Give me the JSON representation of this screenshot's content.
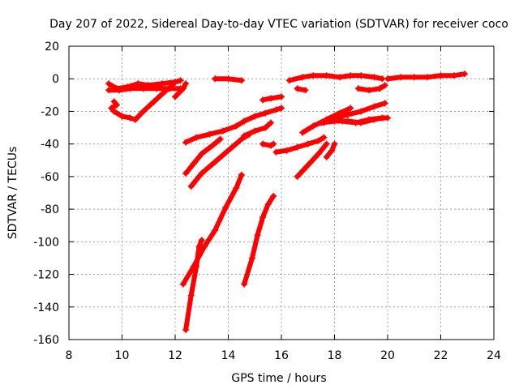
{
  "chart_data": {
    "type": "scatter",
    "title": "Day 207 of 2022, Sidereal Day-to-day VTEC variation (SDTVAR) for receiver coco",
    "xlabel": "GPS time / hours",
    "ylabel": "SDTVAR / TECUs",
    "xlim": [
      8,
      24
    ],
    "ylim": [
      -160,
      20
    ],
    "xticks": [
      8,
      10,
      12,
      14,
      16,
      18,
      20,
      22,
      24
    ],
    "yticks": [
      20,
      0,
      -20,
      -40,
      -60,
      -80,
      -100,
      -120,
      -140,
      -160
    ],
    "grid": true,
    "marker": "plus",
    "color": "#ff0000",
    "series": [
      {
        "points": [
          [
            9.5,
            -3
          ],
          [
            9.8,
            -6
          ],
          [
            10.2,
            -5
          ],
          [
            10.6,
            -3
          ],
          [
            11.0,
            -4
          ],
          [
            11.5,
            -3
          ],
          [
            12.0,
            -2
          ],
          [
            12.2,
            -1
          ]
        ]
      },
      {
        "points": [
          [
            9.5,
            -7
          ],
          [
            9.9,
            -7
          ],
          [
            10.3,
            -6
          ],
          [
            10.8,
            -6
          ],
          [
            11.3,
            -6
          ],
          [
            11.8,
            -6
          ],
          [
            12.2,
            -6
          ]
        ]
      },
      {
        "points": [
          [
            9.7,
            -14
          ],
          [
            9.8,
            -16
          ],
          [
            9.6,
            -18
          ],
          [
            9.7,
            -20
          ],
          [
            10.0,
            -23
          ],
          [
            10.3,
            -24
          ],
          [
            10.5,
            -25
          ]
        ]
      },
      {
        "points": [
          [
            10.5,
            -25
          ],
          [
            10.8,
            -20
          ],
          [
            11.2,
            -14
          ],
          [
            11.6,
            -8
          ],
          [
            11.9,
            -4
          ]
        ]
      },
      {
        "points": [
          [
            12.0,
            -11
          ],
          [
            12.3,
            -6
          ],
          [
            12.4,
            -3
          ]
        ]
      },
      {
        "points": [
          [
            13.5,
            0
          ],
          [
            14.0,
            0
          ],
          [
            14.5,
            -1
          ]
        ]
      },
      {
        "points": [
          [
            12.4,
            -39
          ],
          [
            12.8,
            -36
          ],
          [
            13.3,
            -34
          ],
          [
            13.8,
            -32
          ],
          [
            14.3,
            -29
          ],
          [
            14.6,
            -26
          ]
        ]
      },
      {
        "points": [
          [
            12.4,
            -58
          ],
          [
            12.7,
            -52
          ],
          [
            13.0,
            -46
          ],
          [
            13.4,
            -41
          ],
          [
            13.7,
            -37
          ]
        ]
      },
      {
        "points": [
          [
            12.6,
            -66
          ],
          [
            13.0,
            -58
          ],
          [
            13.5,
            -51
          ],
          [
            14.0,
            -44
          ],
          [
            14.5,
            -37
          ],
          [
            14.8,
            -34
          ]
        ]
      },
      {
        "points": [
          [
            14.6,
            -35
          ],
          [
            15.0,
            -32
          ],
          [
            15.4,
            -30
          ],
          [
            15.6,
            -27
          ]
        ]
      },
      {
        "points": [
          [
            14.6,
            -26
          ],
          [
            15.0,
            -23
          ],
          [
            15.4,
            -21
          ],
          [
            15.8,
            -19
          ],
          [
            16.0,
            -18
          ]
        ]
      },
      {
        "points": [
          [
            15.3,
            -13
          ],
          [
            15.6,
            -12
          ],
          [
            16.0,
            -11
          ]
        ]
      },
      {
        "points": [
          [
            15.3,
            -40
          ],
          [
            15.6,
            -41
          ],
          [
            15.7,
            -40
          ]
        ]
      },
      {
        "points": [
          [
            12.3,
            -126
          ],
          [
            12.7,
            -115
          ],
          [
            13.1,
            -103
          ],
          [
            13.5,
            -93
          ],
          [
            13.9,
            -79
          ],
          [
            14.3,
            -67
          ],
          [
            14.5,
            -59
          ]
        ]
      },
      {
        "points": [
          [
            12.4,
            -154
          ],
          [
            12.6,
            -133
          ],
          [
            12.8,
            -115
          ],
          [
            12.9,
            -103
          ],
          [
            13.0,
            -99
          ]
        ]
      },
      {
        "points": [
          [
            14.6,
            -126
          ],
          [
            14.9,
            -110
          ],
          [
            15.1,
            -96
          ],
          [
            15.3,
            -85
          ],
          [
            15.5,
            -77
          ],
          [
            15.7,
            -72
          ]
        ]
      },
      {
        "points": [
          [
            15.8,
            -45
          ],
          [
            16.2,
            -44
          ],
          [
            16.6,
            -42
          ],
          [
            17.0,
            -40
          ],
          [
            17.4,
            -38
          ],
          [
            17.6,
            -36
          ]
        ]
      },
      {
        "points": [
          [
            16.3,
            -1
          ],
          [
            16.8,
            1
          ],
          [
            17.2,
            2
          ],
          [
            17.7,
            2
          ],
          [
            18.2,
            1
          ],
          [
            18.6,
            2
          ],
          [
            19.0,
            2
          ],
          [
            19.5,
            1
          ],
          [
            19.8,
            0
          ]
        ]
      },
      {
        "points": [
          [
            16.6,
            -6
          ],
          [
            16.9,
            -7
          ]
        ]
      },
      {
        "points": [
          [
            16.6,
            -60
          ],
          [
            17.0,
            -53
          ],
          [
            17.4,
            -46
          ],
          [
            17.7,
            -40
          ]
        ]
      },
      {
        "points": [
          [
            17.7,
            -48
          ],
          [
            17.9,
            -44
          ],
          [
            18.0,
            -40
          ]
        ]
      },
      {
        "points": [
          [
            16.8,
            -33
          ],
          [
            17.2,
            -29
          ],
          [
            17.7,
            -25
          ],
          [
            18.2,
            -21
          ],
          [
            18.6,
            -18
          ]
        ]
      },
      {
        "points": [
          [
            17.5,
            -27
          ],
          [
            18.0,
            -26
          ],
          [
            18.5,
            -26
          ],
          [
            19.0,
            -27
          ],
          [
            19.5,
            -25
          ],
          [
            19.8,
            -24
          ]
        ]
      },
      {
        "points": [
          [
            17.6,
            -27
          ],
          [
            18.0,
            -24
          ],
          [
            18.5,
            -22
          ],
          [
            19.0,
            -20
          ],
          [
            19.5,
            -17
          ],
          [
            19.9,
            -15
          ]
        ]
      },
      {
        "points": [
          [
            18.3,
            -26
          ],
          [
            18.8,
            -27
          ],
          [
            19.3,
            -25
          ],
          [
            19.8,
            -24
          ],
          [
            20.0,
            -24
          ]
        ]
      },
      {
        "points": [
          [
            18.9,
            -6
          ],
          [
            19.3,
            -7
          ],
          [
            19.7,
            -6
          ],
          [
            19.9,
            -4
          ]
        ]
      },
      {
        "points": [
          [
            20.0,
            0
          ],
          [
            20.5,
            1
          ],
          [
            21.0,
            1
          ],
          [
            21.5,
            1
          ],
          [
            22.0,
            2
          ],
          [
            22.5,
            2
          ],
          [
            22.9,
            3
          ]
        ]
      }
    ]
  }
}
